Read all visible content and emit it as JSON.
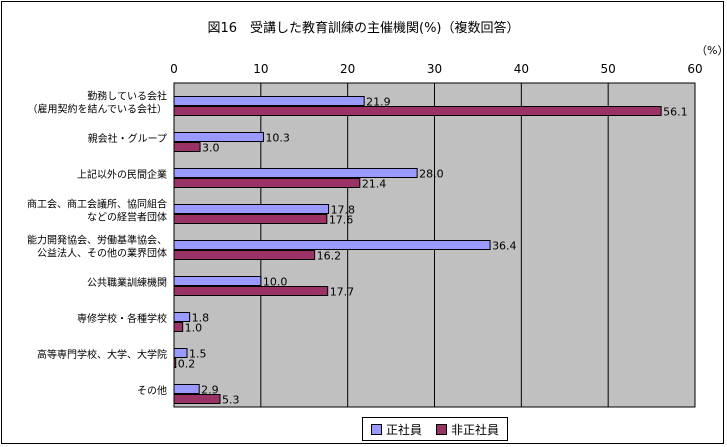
{
  "chart_data": {
    "type": "bar",
    "orientation": "horizontal",
    "title": "図16　受講した教育訓練の主催機関(%)（複数回答）",
    "unit_label": "（%）",
    "xlim": [
      0,
      60
    ],
    "x_ticks": [
      "0",
      "10",
      "20",
      "30",
      "40",
      "50",
      "60"
    ],
    "grid": true,
    "legend_position": "bottom",
    "categories": [
      [
        "勤務している会社",
        "（雇用契約を結んでいる会社）"
      ],
      [
        "親会社・グループ"
      ],
      [
        "上記以外の民間企業"
      ],
      [
        "商工会、商工会議所、協同組合",
        "などの経営者団体"
      ],
      [
        "能力開発協会、労働基準協会、",
        "公益法人、その他の業界団体"
      ],
      [
        "公共職業訓練機関"
      ],
      [
        "専修学校・各種学校"
      ],
      [
        "高等専門学校、大学、大学院"
      ],
      [
        "その他"
      ]
    ],
    "series": [
      {
        "name": "正社員",
        "color": "#9999ff",
        "values": [
          21.9,
          10.3,
          28.0,
          17.8,
          36.4,
          10.0,
          1.8,
          1.5,
          2.9
        ],
        "labels": [
          "21.9",
          "10.3",
          "28.0",
          "17.8",
          "36.4",
          "10.0",
          "1.8",
          "1.5",
          "2.9"
        ]
      },
      {
        "name": "非正社員",
        "color": "#993366",
        "values": [
          56.1,
          3.0,
          21.4,
          17.6,
          16.2,
          17.7,
          1.0,
          0.2,
          5.3
        ],
        "labels": [
          "56.1",
          "3.0",
          "21.4",
          "17.6",
          "16.2",
          "17.7",
          "1.0",
          "0.2",
          "5.3"
        ]
      }
    ]
  }
}
